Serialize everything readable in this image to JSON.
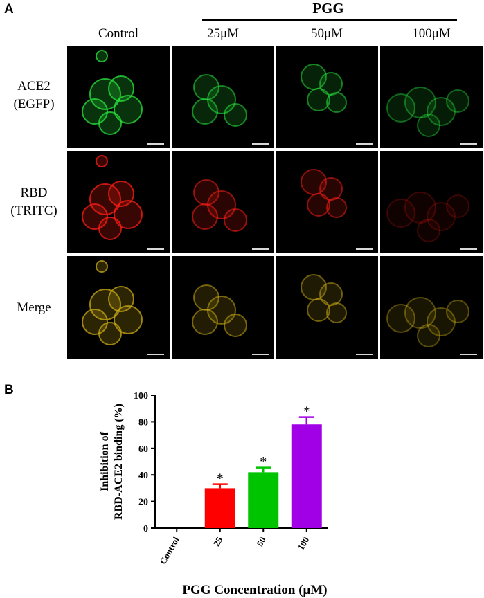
{
  "panel_a": {
    "letter": "A",
    "group_title": "PGG",
    "columns": [
      "Control",
      "25μM",
      "50μM",
      "100μM"
    ],
    "rows": [
      {
        "line1": "ACE2",
        "line2": "(EGFP)",
        "channel": "green"
      },
      {
        "line1": "RBD",
        "line2": "(TRITC)",
        "channel": "red"
      },
      {
        "line1": "Merge",
        "line2": "",
        "channel": "merge"
      }
    ],
    "intensity": [
      1.0,
      0.75,
      0.7,
      0.55
    ]
  },
  "panel_b": {
    "letter": "B"
  },
  "chart_data": {
    "type": "bar",
    "categories": [
      "Control",
      "25",
      "50",
      "100"
    ],
    "values": [
      0,
      30,
      42,
      78
    ],
    "errors": [
      0,
      3,
      3.5,
      5.5
    ],
    "significance": [
      "",
      "*",
      "*",
      "*"
    ],
    "colors": [
      "#ffffff",
      "#ff0000",
      "#00c400",
      "#a100e6"
    ],
    "ylabel_line1": "Inhibition of",
    "ylabel_line2": "RBD-ACE2 binding (%)",
    "xlabel": "PGG Concentration (μM)",
    "ylim": [
      0,
      100
    ],
    "yticks": [
      0,
      20,
      40,
      60,
      80,
      100
    ],
    "grid": false
  }
}
